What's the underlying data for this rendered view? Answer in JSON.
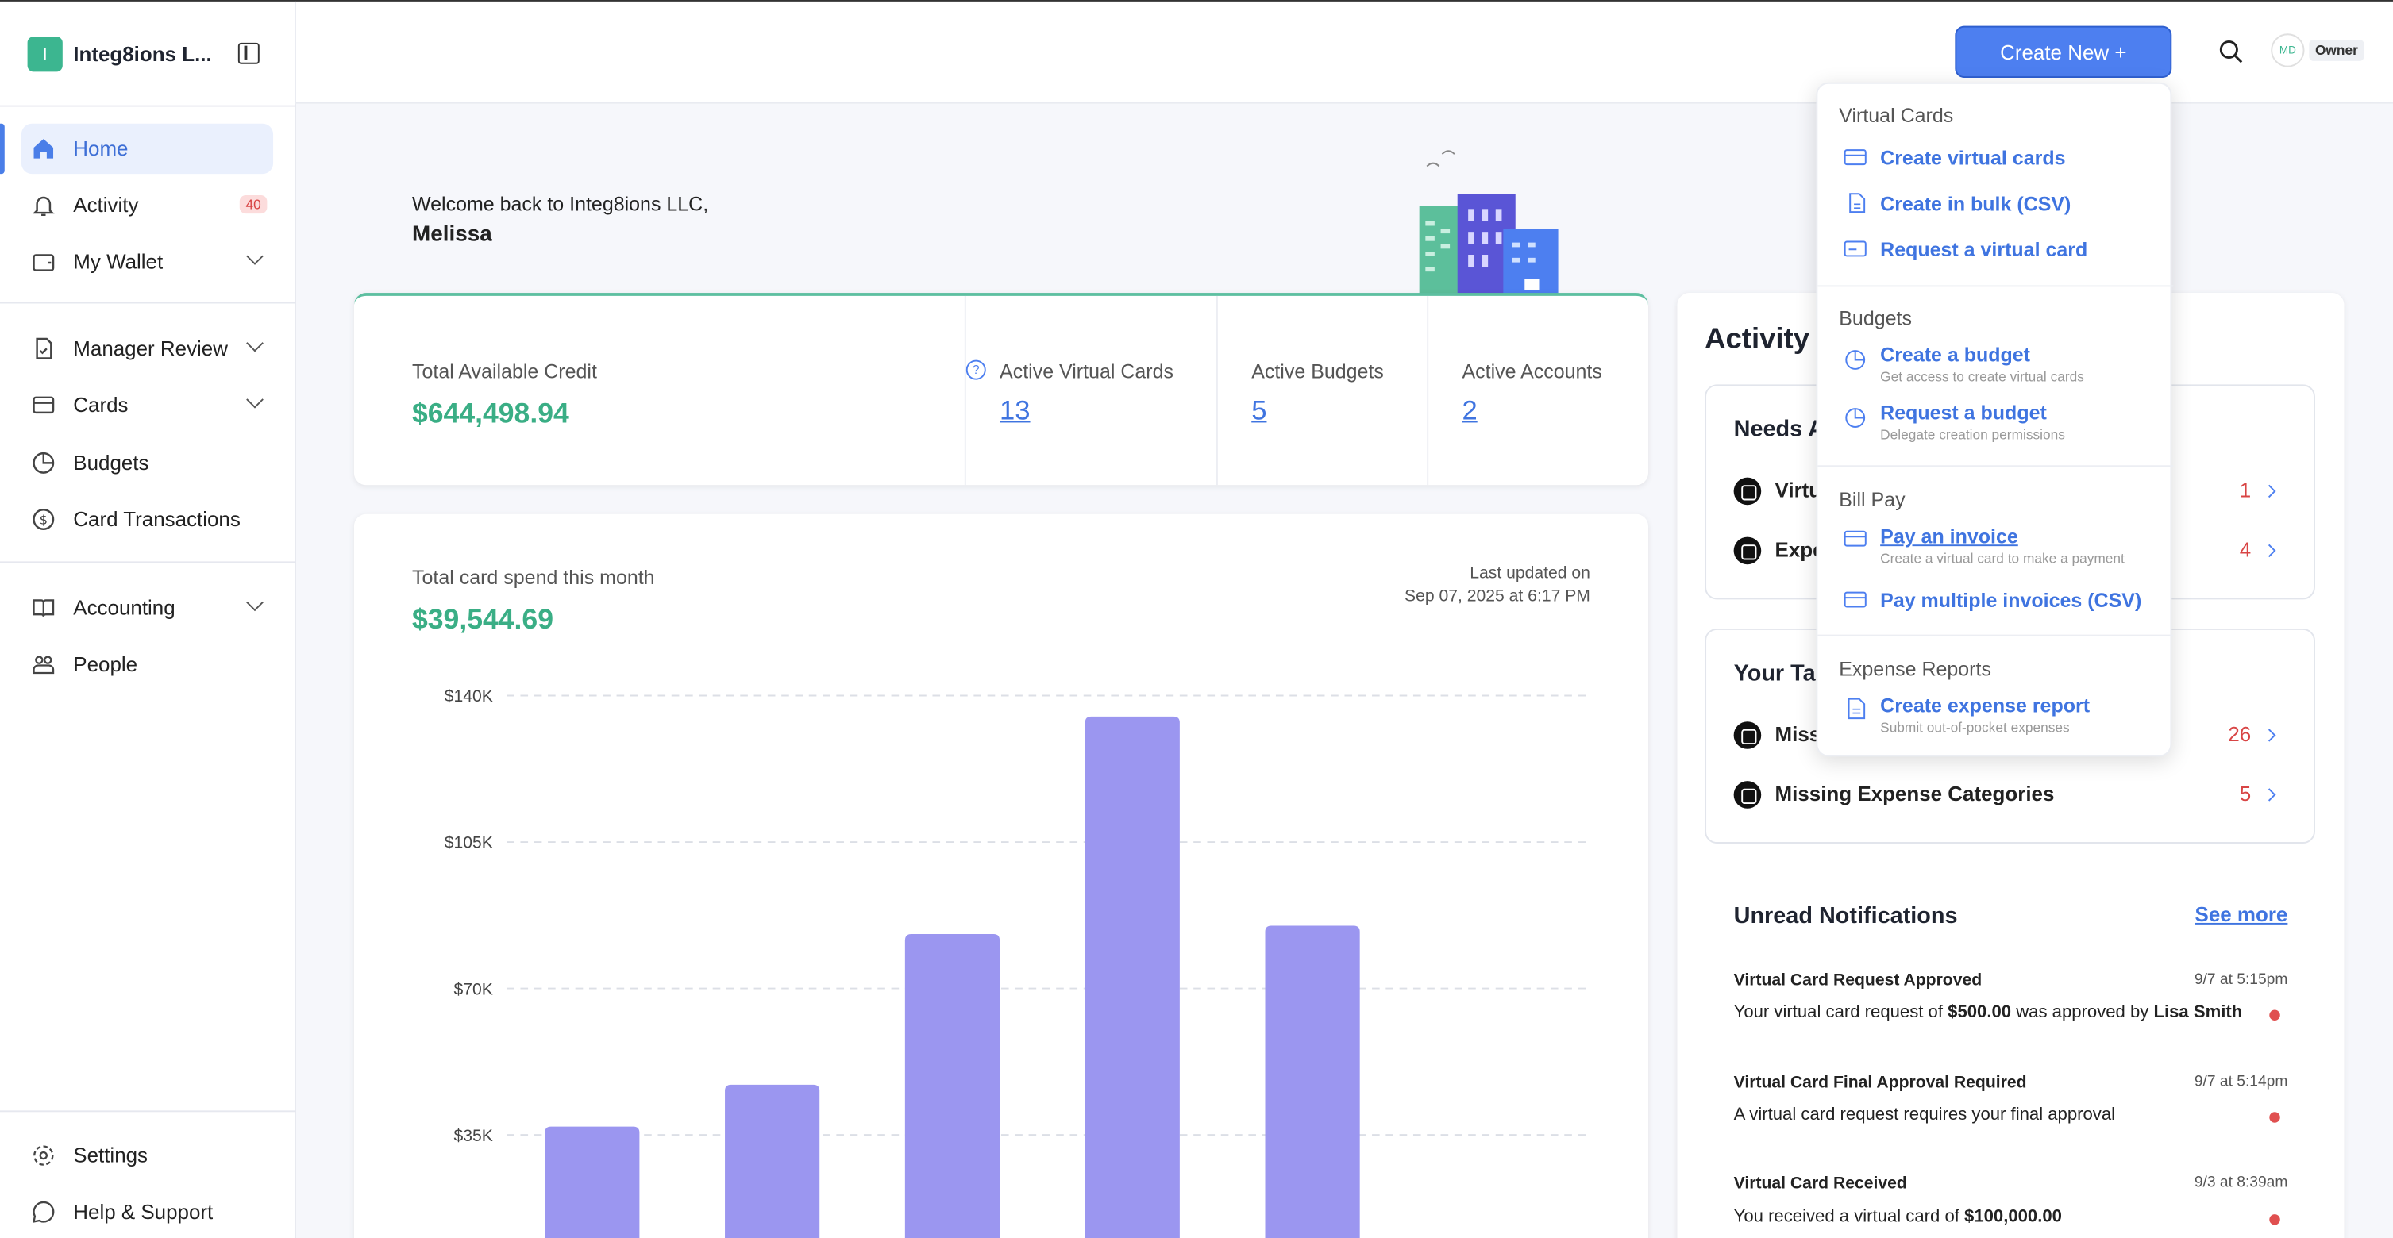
{
  "org": {
    "initial": "I",
    "name": "Integ8ions L..."
  },
  "sidebar": {
    "items": [
      {
        "label": "Home"
      },
      {
        "label": "Activity",
        "badge": "40"
      },
      {
        "label": "My Wallet"
      },
      {
        "label": "Manager Review"
      },
      {
        "label": "Cards"
      },
      {
        "label": "Budgets"
      },
      {
        "label": "Card Transactions"
      },
      {
        "label": "Accounting"
      },
      {
        "label": "People"
      }
    ],
    "footer": [
      {
        "label": "Settings"
      },
      {
        "label": "Help & Support"
      }
    ]
  },
  "header": {
    "create_label": "Create New +",
    "user_initials": "MD",
    "role": "Owner"
  },
  "welcome": {
    "line1": "Welcome back to Integ8ions LLC,",
    "name": "Melissa"
  },
  "stats": {
    "credit_label": "Total Available Credit",
    "credit_value": "$644,498.94",
    "cards_label": "Active Virtual Cards",
    "cards_value": "13",
    "budgets_label": "Active Budgets",
    "budgets_value": "5",
    "accounts_label": "Active Accounts",
    "accounts_value": "2"
  },
  "spend": {
    "label": "Total card spend this month",
    "value": "$39,544.69",
    "updated_line1": "Last updated on",
    "updated_line2": "Sep 07, 2025 at 6:17 PM"
  },
  "chart_data": {
    "type": "bar",
    "categories": [
      "",
      "",
      "",
      "",
      ""
    ],
    "values": [
      37000,
      47000,
      83000,
      135000,
      85000
    ],
    "y_ticks": [
      "$35K",
      "$70K",
      "$105K",
      "$140K"
    ],
    "ylim": [
      0,
      140000
    ],
    "grid": true,
    "bar_color": "#9b96f0"
  },
  "activity": {
    "title": "Activity",
    "needs_title": "Needs A",
    "needs_rows": [
      {
        "label": "Virtu",
        "count": "1"
      },
      {
        "label": "Expe",
        "count": "4"
      }
    ],
    "tasks_title": "Your Ta",
    "task_rows": [
      {
        "label": "Miss",
        "count": "26"
      },
      {
        "label": "Missing Expense Categories",
        "count": "5"
      }
    ],
    "notif_title": "Unread Notifications",
    "see_more": "See more",
    "notifications": [
      {
        "head": "Virtual Card Request Approved",
        "time": "9/7 at 5:15pm",
        "pre": "Your virtual card request of ",
        "b1": "$500.00",
        "mid": " was approved by ",
        "b2": "Lisa Smith"
      },
      {
        "head": "Virtual Card Final Approval Required",
        "time": "9/7 at 5:14pm",
        "pre": "A virtual card request requires your final approval",
        "b1": "",
        "mid": "",
        "b2": ""
      },
      {
        "head": "Virtual Card Received",
        "time": "9/3 at 8:39am",
        "pre": "You received a virtual card of ",
        "b1": "$100,000.00",
        "mid": "",
        "b2": ""
      }
    ]
  },
  "dropdown": {
    "sections": [
      {
        "title": "Virtual Cards",
        "items": [
          {
            "label": "Create virtual cards"
          },
          {
            "label": "Create in bulk (CSV)"
          },
          {
            "label": "Request a virtual card"
          }
        ]
      },
      {
        "title": "Budgets",
        "items": [
          {
            "label": "Create a budget",
            "sub": "Get access to create virtual cards"
          },
          {
            "label": "Request a budget",
            "sub": "Delegate creation permissions"
          }
        ]
      },
      {
        "title": "Bill Pay",
        "items": [
          {
            "label": "Pay an invoice",
            "sub": "Create a virtual card to make a payment"
          },
          {
            "label": "Pay multiple invoices (CSV)"
          }
        ]
      },
      {
        "title": "Expense Reports",
        "items": [
          {
            "label": "Create expense report",
            "sub": "Submit out-of-pocket expenses"
          }
        ]
      }
    ]
  }
}
